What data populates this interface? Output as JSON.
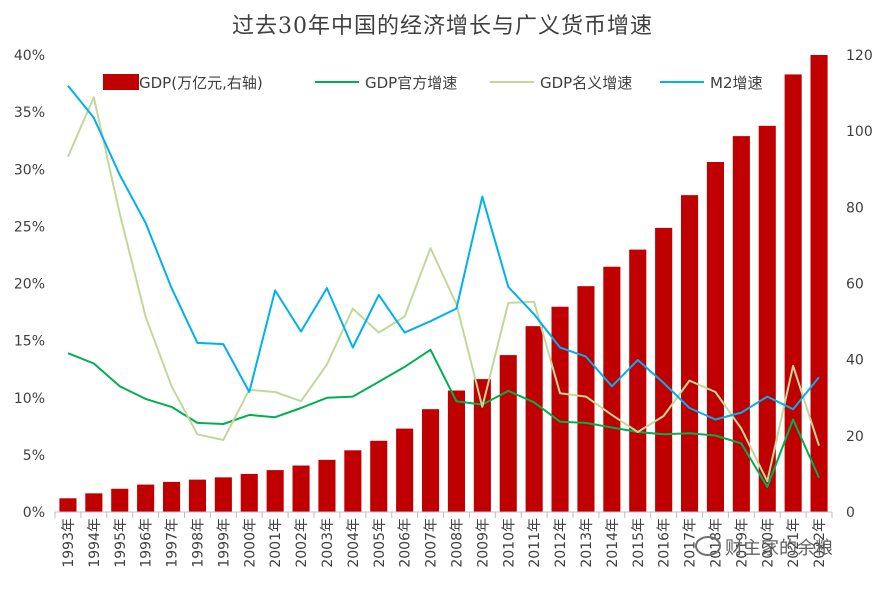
{
  "chart_data": {
    "type": "bar+line",
    "title": "过去30年中国的经济增长与广义货币增速",
    "categories": [
      "1993年",
      "1994年",
      "1995年",
      "1996年",
      "1997年",
      "1998年",
      "1999年",
      "2000年",
      "2001年",
      "2002年",
      "2003年",
      "2004年",
      "2005年",
      "2006年",
      "2007年",
      "2008年",
      "2009年",
      "2010年",
      "2011年",
      "2012年",
      "2013年",
      "2014年",
      "2015年",
      "2016年",
      "2017年",
      "2018年",
      "2019年",
      "2020年",
      "2021年",
      "2022年"
    ],
    "series": [
      {
        "name": "GDP(万亿元,右轴)",
        "type": "bar",
        "axis": "right",
        "color": "#c00000",
        "values": [
          3.6,
          4.9,
          6.1,
          7.2,
          7.9,
          8.5,
          9.1,
          10.0,
          11.0,
          12.2,
          13.7,
          16.2,
          18.7,
          21.9,
          27.0,
          31.9,
          34.9,
          41.2,
          48.8,
          53.9,
          59.3,
          64.4,
          68.9,
          74.6,
          83.2,
          91.9,
          98.7,
          101.4,
          114.9,
          121.0
        ]
      },
      {
        "name": "GDP官方增速",
        "type": "line",
        "axis": "left",
        "color": "#00b050",
        "values": [
          13.9,
          13.0,
          11.0,
          9.9,
          9.2,
          7.8,
          7.7,
          8.5,
          8.3,
          9.1,
          10.0,
          10.1,
          11.4,
          12.7,
          14.2,
          9.7,
          9.4,
          10.6,
          9.6,
          7.9,
          7.8,
          7.4,
          7.0,
          6.8,
          6.9,
          6.7,
          6.0,
          2.2,
          8.1,
          3.0
        ]
      },
      {
        "name": "GDP名义增速",
        "type": "line",
        "axis": "left",
        "color": "#c4d79b",
        "values": [
          31.1,
          36.3,
          26.1,
          17.1,
          11.0,
          6.8,
          6.3,
          10.7,
          10.5,
          9.7,
          12.9,
          17.8,
          15.7,
          17.1,
          23.1,
          18.2,
          9.2,
          18.3,
          18.4,
          10.4,
          10.1,
          8.5,
          7.0,
          8.4,
          11.5,
          10.5,
          7.3,
          2.7,
          12.8,
          5.8
        ]
      },
      {
        "name": "M2增速",
        "type": "line",
        "axis": "left",
        "color": "#00b0f0",
        "values": [
          37.3,
          34.5,
          29.5,
          25.3,
          19.6,
          14.8,
          14.7,
          10.5,
          19.4,
          15.8,
          19.6,
          14.4,
          19.0,
          15.7,
          16.7,
          17.8,
          27.6,
          19.7,
          17.3,
          14.4,
          13.6,
          11.0,
          13.3,
          11.3,
          9.1,
          8.1,
          8.7,
          10.1,
          9.0,
          11.8
        ]
      }
    ],
    "y_left": {
      "min": 0,
      "max": 40,
      "step": 5,
      "tick_labels": [
        "0%",
        "5%",
        "10%",
        "15%",
        "20%",
        "25%",
        "30%",
        "35%",
        "40%"
      ]
    },
    "y_right": {
      "min": 0,
      "max": 120,
      "step": 20,
      "tick_labels": [
        "0",
        "20",
        "40",
        "60",
        "80",
        "100",
        "120"
      ]
    },
    "grid": false,
    "legend_position": "top",
    "xlabel": "",
    "ylabel": ""
  },
  "watermark": {
    "text": "财主家的余粮"
  }
}
